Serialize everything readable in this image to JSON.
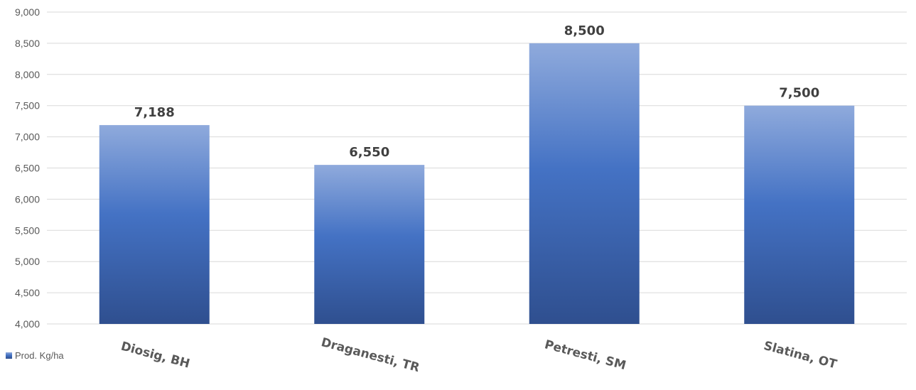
{
  "chart_data": {
    "type": "bar",
    "categories": [
      "Diosig, BH",
      "Draganesti, TR",
      "Petresti, SM",
      "Slatina, OT"
    ],
    "series": [
      {
        "name": "Prod. Kg/ha",
        "values": [
          7188,
          6550,
          8500,
          7500
        ],
        "value_labels": [
          "7,188",
          "6,550",
          "8,500",
          "7,500"
        ]
      }
    ],
    "title": "",
    "xlabel": "",
    "ylabel": "",
    "ylim": [
      4000,
      9000
    ],
    "ytick_step": 500,
    "ytick_labels": [
      "4,000",
      "4,500",
      "5,000",
      "5,500",
      "6,000",
      "6,500",
      "7,000",
      "7,500",
      "8,000",
      "8,500",
      "9,000"
    ],
    "grid": true,
    "legend_position": "bottom-left",
    "colors": {
      "bar_top": "#8faadc",
      "bar_mid": "#4472c4",
      "bar_bottom": "#2f4f8f",
      "gridline": "#d9d9d9"
    }
  }
}
